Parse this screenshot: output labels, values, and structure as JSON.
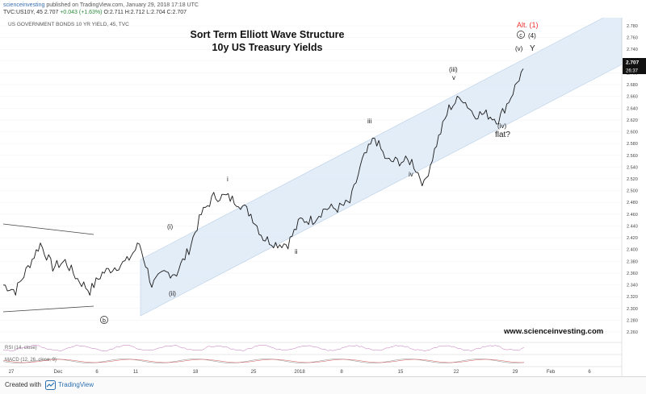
{
  "header": {
    "publisher_line": "scienceinvesting published on TradingView.com, January 29, 2018 17:18 UTC",
    "publisher_user": "scienceinvesting",
    "symbol_line_prefix": "TVC:US10Y, 45",
    "last": "2.707",
    "change": "+0.043 (+1.63%)",
    "ohlc": "O:2.711 H:2.712 L:2.704 C:2.707"
  },
  "chart_data": {
    "type": "line",
    "instrument_label": "US GOVERNMENT BONDS 10 YR YIELD, 45, TVC",
    "title": "Sort Term Elliott Wave Structure",
    "subtitle": "10y US Treasury Yields",
    "xlabel": "",
    "ylabel": "",
    "x_ticks": [
      "27",
      "Dec",
      "6",
      "11",
      "18",
      "25",
      "2018",
      "8",
      "15",
      "22",
      "29",
      "Feb",
      "6"
    ],
    "y_ticks": [
      "2.780",
      "2.760",
      "2.740",
      "2.720",
      "2.700",
      "2.680",
      "2.660",
      "2.640",
      "2.620",
      "2.600",
      "2.580",
      "2.560",
      "2.540",
      "2.520",
      "2.500",
      "2.480",
      "2.460",
      "2.440",
      "2.420",
      "2.400",
      "2.380",
      "2.360",
      "2.340",
      "2.320",
      "2.300",
      "2.280",
      "2.260"
    ],
    "ylim": [
      2.26,
      2.78
    ],
    "last_price": "2.707",
    "countdown": "26:37",
    "series": [
      {
        "x": [
          "Nov 27",
          "Nov 28",
          "Nov 29",
          "Nov 30",
          "Dec 1",
          "Dec 4",
          "Dec 5",
          "Dec 6",
          "Dec 7",
          "Dec 8",
          "Dec 11",
          "Dec 12",
          "Dec 13",
          "Dec 14",
          "Dec 15",
          "Dec 18",
          "Dec 19",
          "Dec 20",
          "Dec 21",
          "Dec 22",
          "Dec 26",
          "Dec 27",
          "Dec 28",
          "Dec 29",
          "Jan 2",
          "Jan 3",
          "Jan 4",
          "Jan 5",
          "Jan 8",
          "Jan 9",
          "Jan 10",
          "Jan 11",
          "Jan 12",
          "Jan 16",
          "Jan 17",
          "Jan 18",
          "Jan 19",
          "Jan 22",
          "Jan 23",
          "Jan 24",
          "Jan 25",
          "Jan 26",
          "Jan 29"
        ],
        "values": [
          2.34,
          2.33,
          2.37,
          2.41,
          2.37,
          2.38,
          2.35,
          2.33,
          2.36,
          2.37,
          2.38,
          2.41,
          2.34,
          2.36,
          2.36,
          2.4,
          2.46,
          2.49,
          2.49,
          2.48,
          2.46,
          2.42,
          2.41,
          2.41,
          2.45,
          2.45,
          2.47,
          2.47,
          2.48,
          2.55,
          2.59,
          2.55,
          2.55,
          2.55,
          2.51,
          2.58,
          2.64,
          2.66,
          2.63,
          2.63,
          2.62,
          2.66,
          2.707
        ]
      }
    ],
    "grid": true,
    "legend": "none",
    "indicators": [
      {
        "name": "RSI (14, close)"
      },
      {
        "name": "MACD (12, 26, close, 9)"
      }
    ],
    "annotations": {
      "wave_labels": [
        "(i)",
        "(ii)",
        "i",
        "ii",
        "iii",
        "iv",
        "(iii)",
        "v",
        "(iv)",
        "flat?",
        "(v)",
        "Y",
        "(4)",
        "Alt. (1)",
        "b",
        "c"
      ],
      "watermark": "www.scienceinvesting.com"
    }
  },
  "footer": {
    "created_with": "Created with",
    "brand": "TradingView"
  }
}
